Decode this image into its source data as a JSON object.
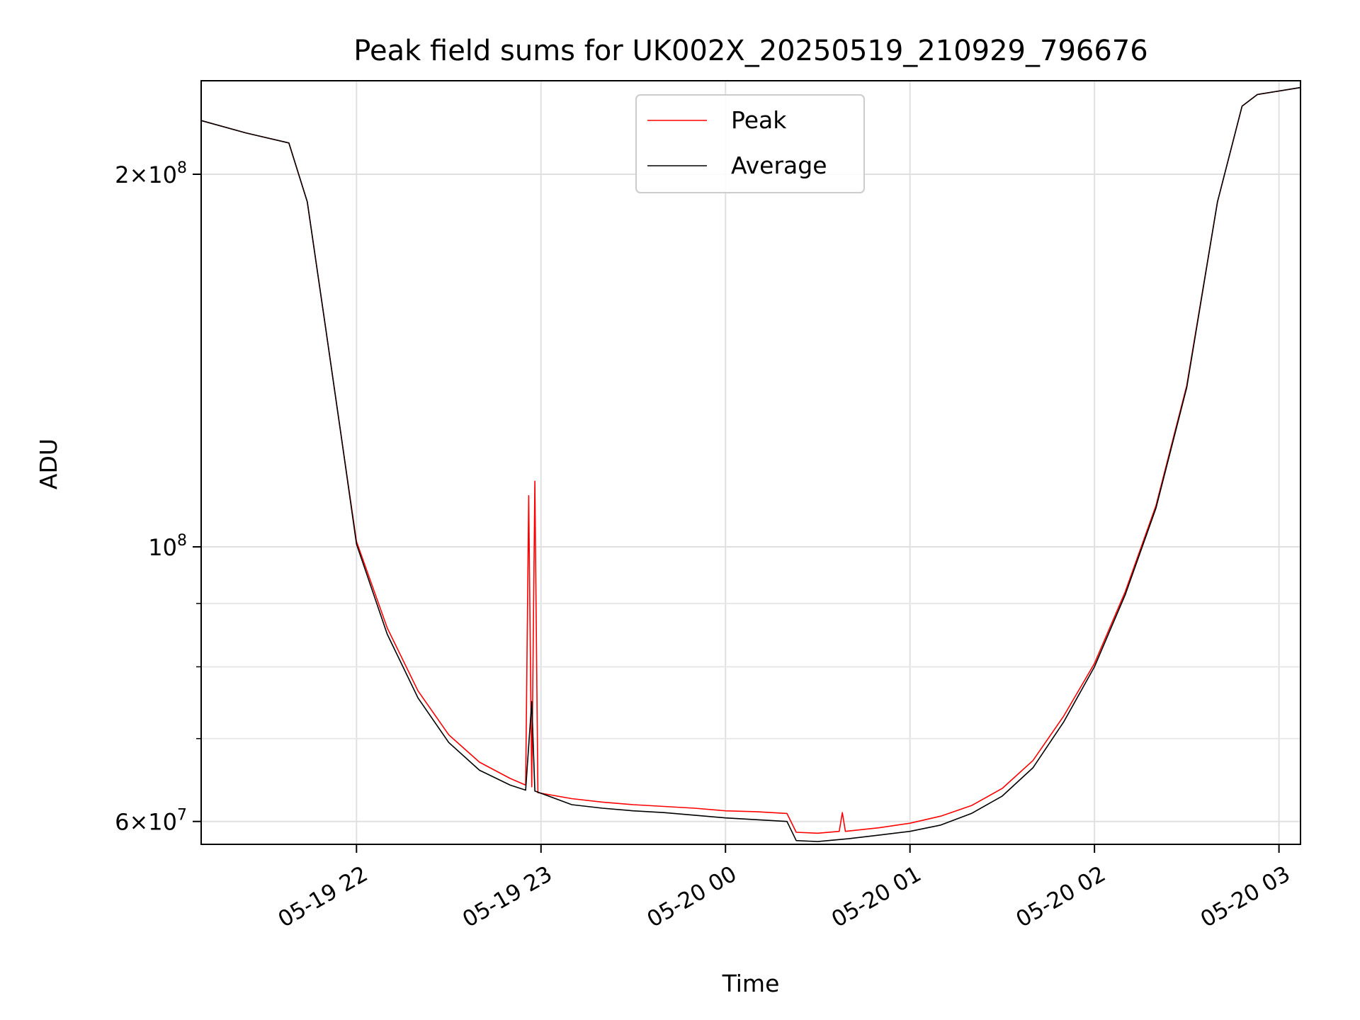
{
  "chart_data": {
    "type": "line",
    "title": "Peak field sums for UK002X_20250519_210929_796676",
    "xlabel": "Time",
    "ylabel": "ADU",
    "x_range": [
      "2025-05-19 21:09:29",
      "2025-05-20 03:07:00"
    ],
    "ylim": [
      57500000,
      238000000
    ],
    "y_scale": "log",
    "x_tick_labels": [
      "05-19 22",
      "05-19 23",
      "05-20 00",
      "05-20 01",
      "05-20 02",
      "05-20 03"
    ],
    "x_ticks": [
      "2025-05-19 22:00",
      "2025-05-19 23:00",
      "2025-05-20 00:00",
      "2025-05-20 01:00",
      "2025-05-20 02:00",
      "2025-05-20 03:00"
    ],
    "y_major_ticks": [
      {
        "value": 60000000,
        "mantissa": "6",
        "times": "×",
        "base": "10",
        "exp": "7"
      },
      {
        "value": 100000000,
        "mantissa": "",
        "times": "",
        "base": "10",
        "exp": "8"
      },
      {
        "value": 200000000,
        "mantissa": "2",
        "times": "×",
        "base": "10",
        "exp": "8"
      }
    ],
    "y_minor_ticks": [
      70000000,
      80000000,
      90000000
    ],
    "grid": true,
    "legend_position": "top-center",
    "series": [
      {
        "name": "Peak",
        "color": "#ff0000",
        "points": [
          [
            "2025-05-19 21:09:29",
            221000000
          ],
          [
            "2025-05-19 21:24:00",
            216000000
          ],
          [
            "2025-05-19 21:38:00",
            212000000
          ],
          [
            "2025-05-19 21:44:00",
            190000000
          ],
          [
            "2025-05-19 21:50:00",
            150000000
          ],
          [
            "2025-05-19 21:55:00",
            123000000
          ],
          [
            "2025-05-19 22:00:00",
            101000000
          ],
          [
            "2025-05-19 22:10:00",
            86000000
          ],
          [
            "2025-05-19 22:20:00",
            76500000
          ],
          [
            "2025-05-19 22:30:00",
            70500000
          ],
          [
            "2025-05-19 22:40:00",
            67000000
          ],
          [
            "2025-05-19 22:50:00",
            65000000
          ],
          [
            "2025-05-19 22:55:00",
            64200000
          ],
          [
            "2025-05-19 22:56:00",
            110000000
          ],
          [
            "2025-05-19 22:57:00",
            64000000
          ],
          [
            "2025-05-19 22:58:00",
            113000000
          ],
          [
            "2025-05-19 22:59:00",
            63300000
          ],
          [
            "2025-05-19 23:10:00",
            62600000
          ],
          [
            "2025-05-19 23:20:00",
            62200000
          ],
          [
            "2025-05-19 23:30:00",
            61900000
          ],
          [
            "2025-05-19 23:40:00",
            61700000
          ],
          [
            "2025-05-19 23:50:00",
            61500000
          ],
          [
            "2025-05-20 00:00:00",
            61200000
          ],
          [
            "2025-05-20 00:10:00",
            61100000
          ],
          [
            "2025-05-20 00:20:00",
            60900000
          ],
          [
            "2025-05-20 00:23:00",
            58800000
          ],
          [
            "2025-05-20 00:30:00",
            58700000
          ],
          [
            "2025-05-20 00:37:00",
            58900000
          ],
          [
            "2025-05-20 00:38:00",
            61000000
          ],
          [
            "2025-05-20 00:39:00",
            58900000
          ],
          [
            "2025-05-20 00:50:00",
            59300000
          ],
          [
            "2025-05-20 01:00:00",
            59800000
          ],
          [
            "2025-05-20 01:10:00",
            60600000
          ],
          [
            "2025-05-20 01:20:00",
            61800000
          ],
          [
            "2025-05-20 01:30:00",
            63800000
          ],
          [
            "2025-05-20 01:40:00",
            67200000
          ],
          [
            "2025-05-20 01:50:00",
            73000000
          ],
          [
            "2025-05-20 02:00:00",
            80500000
          ],
          [
            "2025-05-20 02:10:00",
            92000000
          ],
          [
            "2025-05-20 02:20:00",
            108000000
          ],
          [
            "2025-05-20 02:30:00",
            135000000
          ],
          [
            "2025-05-20 02:40:00",
            190000000
          ],
          [
            "2025-05-20 02:48:00",
            227000000
          ],
          [
            "2025-05-20 02:53:00",
            232000000
          ],
          [
            "2025-05-20 03:07:00",
            235000000
          ]
        ]
      },
      {
        "name": "Average",
        "color": "#000000",
        "points": [
          [
            "2025-05-19 21:09:29",
            221000000
          ],
          [
            "2025-05-19 21:24:00",
            216000000
          ],
          [
            "2025-05-19 21:38:00",
            212000000
          ],
          [
            "2025-05-19 21:44:00",
            190000000
          ],
          [
            "2025-05-19 21:50:00",
            150000000
          ],
          [
            "2025-05-19 21:55:00",
            123000000
          ],
          [
            "2025-05-19 22:00:00",
            100500000
          ],
          [
            "2025-05-19 22:10:00",
            85000000
          ],
          [
            "2025-05-19 22:20:00",
            75500000
          ],
          [
            "2025-05-19 22:30:00",
            69500000
          ],
          [
            "2025-05-19 22:40:00",
            66000000
          ],
          [
            "2025-05-19 22:50:00",
            64200000
          ],
          [
            "2025-05-19 22:55:00",
            63600000
          ],
          [
            "2025-05-19 22:57:00",
            75000000
          ],
          [
            "2025-05-19 22:58:00",
            63500000
          ],
          [
            "2025-05-19 23:10:00",
            61900000
          ],
          [
            "2025-05-19 23:20:00",
            61500000
          ],
          [
            "2025-05-19 23:30:00",
            61200000
          ],
          [
            "2025-05-19 23:40:00",
            61000000
          ],
          [
            "2025-05-19 23:50:00",
            60700000
          ],
          [
            "2025-05-20 00:00:00",
            60400000
          ],
          [
            "2025-05-20 00:10:00",
            60200000
          ],
          [
            "2025-05-20 00:20:00",
            60000000
          ],
          [
            "2025-05-20 00:23:00",
            57900000
          ],
          [
            "2025-05-20 00:30:00",
            57800000
          ],
          [
            "2025-05-20 00:40:00",
            58100000
          ],
          [
            "2025-05-20 00:50:00",
            58500000
          ],
          [
            "2025-05-20 01:00:00",
            58900000
          ],
          [
            "2025-05-20 01:10:00",
            59600000
          ],
          [
            "2025-05-20 01:20:00",
            60900000
          ],
          [
            "2025-05-20 01:30:00",
            62900000
          ],
          [
            "2025-05-20 01:40:00",
            66300000
          ],
          [
            "2025-05-20 01:50:00",
            72200000
          ],
          [
            "2025-05-20 02:00:00",
            80000000
          ],
          [
            "2025-05-20 02:10:00",
            91500000
          ],
          [
            "2025-05-20 02:20:00",
            107500000
          ],
          [
            "2025-05-20 02:30:00",
            134500000
          ],
          [
            "2025-05-20 02:40:00",
            190000000
          ],
          [
            "2025-05-20 02:48:00",
            227000000
          ],
          [
            "2025-05-20 02:53:00",
            232000000
          ],
          [
            "2025-05-20 03:07:00",
            235000000
          ]
        ]
      }
    ]
  }
}
